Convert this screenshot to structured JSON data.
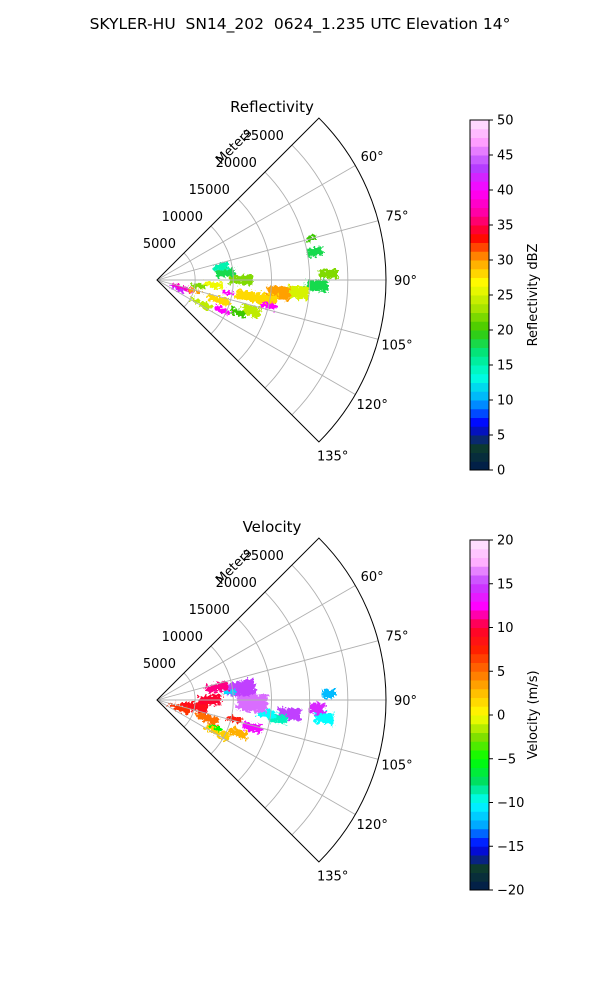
{
  "figure": {
    "title": "SKYLER-HU  SN14_202  0624_1.235 UTC Elevation 14°"
  },
  "chart_data": [
    {
      "type": "heatmap",
      "subtype": "polar-sector (radar PPI)",
      "title": "Reflectivity",
      "radial_label": "Meters",
      "radial_ticks": [
        "5000",
        "10000",
        "15000",
        "20000",
        "25000"
      ],
      "radial_values": [
        5000,
        10000,
        15000,
        20000,
        25000
      ],
      "rlim": [
        0,
        30000
      ],
      "angle_ticks": [
        "60°",
        "75°",
        "90°",
        "105°",
        "120°",
        "135°"
      ],
      "angle_values": [
        60,
        75,
        90,
        105,
        120,
        135
      ],
      "theta_range": [
        45,
        135
      ],
      "grid": true,
      "colorbar": {
        "label": "Reflectivity dBZ",
        "ticks": [
          "0",
          "5",
          "10",
          "15",
          "20",
          "25",
          "30",
          "35",
          "40",
          "45",
          "50"
        ],
        "range": [
          0,
          50
        ],
        "stops": [
          "#001a4d",
          "#0d3b2e",
          "#0000ff",
          "#00aaff",
          "#00ffe0",
          "#00e680",
          "#3ac800",
          "#aee600",
          "#ffff00",
          "#ffa000",
          "#ff0000",
          "#ff00a0",
          "#ff00ff",
          "#b040ff",
          "#ff99ff",
          "#ffe6ff"
        ]
      },
      "cells": [
        {
          "r": 21000,
          "theta": 80,
          "dr": 2000,
          "dth": 3,
          "value": 18
        },
        {
          "r": 21000,
          "theta": 75,
          "dr": 1200,
          "dth": 2,
          "value": 20
        },
        {
          "r": 22500,
          "theta": 88,
          "dr": 2500,
          "dth": 3,
          "value": 22
        },
        {
          "r": 21000,
          "theta": 92,
          "dr": 3000,
          "dth": 4,
          "value": 18
        },
        {
          "r": 18500,
          "theta": 95,
          "dr": 3000,
          "dth": 5,
          "value": 25
        },
        {
          "r": 16000,
          "theta": 96,
          "dr": 3000,
          "dth": 6,
          "value": 30
        },
        {
          "r": 14500,
          "theta": 100,
          "dr": 3000,
          "dth": 6,
          "value": 28
        },
        {
          "r": 15000,
          "theta": 103,
          "dr": 2000,
          "dth": 3,
          "value": 40
        },
        {
          "r": 12000,
          "theta": 100,
          "dr": 3000,
          "dth": 6,
          "value": 28
        },
        {
          "r": 11000,
          "theta": 90,
          "dr": 3000,
          "dth": 6,
          "value": 22
        },
        {
          "r": 9000,
          "theta": 84,
          "dr": 2500,
          "dth": 6,
          "value": 18
        },
        {
          "r": 8500,
          "theta": 78,
          "dr": 2000,
          "dth": 6,
          "value": 15
        },
        {
          "r": 7500,
          "theta": 95,
          "dr": 2500,
          "dth": 6,
          "value": 26
        },
        {
          "r": 9500,
          "theta": 100,
          "dr": 1500,
          "dth": 3,
          "value": 40
        },
        {
          "r": 8500,
          "theta": 108,
          "dr": 3000,
          "dth": 6,
          "value": 28
        },
        {
          "r": 9500,
          "theta": 115,
          "dr": 2000,
          "dth": 4,
          "value": 40
        },
        {
          "r": 6500,
          "theta": 118,
          "dr": 3000,
          "dth": 6,
          "value": 24
        },
        {
          "r": 3500,
          "theta": 107,
          "dr": 3000,
          "dth": 8,
          "value": 38
        },
        {
          "r": 2800,
          "theta": 114,
          "dr": 2200,
          "dth": 8,
          "value": 42
        },
        {
          "r": 5200,
          "theta": 106,
          "dr": 1800,
          "dth": 5,
          "value": 30
        },
        {
          "r": 5500,
          "theta": 98,
          "dr": 2000,
          "dth": 6,
          "value": 22
        },
        {
          "r": 13000,
          "theta": 108,
          "dr": 2500,
          "dth": 6,
          "value": 24
        },
        {
          "r": 11500,
          "theta": 112,
          "dr": 2000,
          "dth": 4,
          "value": 20
        }
      ]
    },
    {
      "type": "heatmap",
      "subtype": "polar-sector (radar PPI)",
      "title": "Velocity",
      "radial_label": "Meters",
      "radial_ticks": [
        "5000",
        "10000",
        "15000",
        "20000",
        "25000"
      ],
      "radial_values": [
        5000,
        10000,
        15000,
        20000,
        25000
      ],
      "rlim": [
        0,
        30000
      ],
      "angle_ticks": [
        "60°",
        "75°",
        "90°",
        "105°",
        "120°",
        "135°"
      ],
      "angle_values": [
        60,
        75,
        90,
        105,
        120,
        135
      ],
      "theta_range": [
        45,
        135
      ],
      "grid": true,
      "colorbar": {
        "label": "Velocity (m/s)",
        "ticks": [
          "−20",
          "−15",
          "−10",
          "−5",
          "0",
          "5",
          "10",
          "15",
          "20"
        ],
        "range": [
          -20,
          20
        ],
        "stops": [
          "#001a4d",
          "#0d3b2e",
          "#0000ff",
          "#00aaff",
          "#00ffff",
          "#00e060",
          "#00ff00",
          "#80e000",
          "#ffff00",
          "#ffc000",
          "#ff7000",
          "#ff2000",
          "#ff0030",
          "#ff00ff",
          "#c040ff",
          "#ffb0ff",
          "#ffe8ff"
        ]
      },
      "cells": [
        {
          "r": 22500,
          "theta": 88,
          "dr": 1800,
          "dth": 3,
          "value": -12
        },
        {
          "r": 22000,
          "theta": 96,
          "dr": 2500,
          "dth": 4,
          "value": -10
        },
        {
          "r": 21000,
          "theta": 93,
          "dr": 2000,
          "dth": 4,
          "value": 14
        },
        {
          "r": 17500,
          "theta": 96,
          "dr": 3000,
          "dth": 5,
          "value": 15
        },
        {
          "r": 16000,
          "theta": 99,
          "dr": 2500,
          "dth": 4,
          "value": -9
        },
        {
          "r": 14500,
          "theta": 97,
          "dr": 2500,
          "dth": 4,
          "value": -10
        },
        {
          "r": 12500,
          "theta": 92,
          "dr": 4000,
          "dth": 10,
          "value": 16
        },
        {
          "r": 11000,
          "theta": 82,
          "dr": 4000,
          "dth": 10,
          "value": 15
        },
        {
          "r": 9500,
          "theta": 84,
          "dr": 1500,
          "dth": 3,
          "value": -11
        },
        {
          "r": 8000,
          "theta": 78,
          "dr": 3000,
          "dth": 8,
          "value": 11
        },
        {
          "r": 7000,
          "theta": 90,
          "dr": 3000,
          "dth": 10,
          "value": 10
        },
        {
          "r": 5000,
          "theta": 100,
          "dr": 3500,
          "dth": 12,
          "value": 9
        },
        {
          "r": 3000,
          "theta": 110,
          "dr": 3000,
          "dth": 12,
          "value": 7
        },
        {
          "r": 7000,
          "theta": 110,
          "dr": 3000,
          "dth": 8,
          "value": 5
        },
        {
          "r": 9000,
          "theta": 118,
          "dr": 3500,
          "dth": 6,
          "value": 2
        },
        {
          "r": 11500,
          "theta": 112,
          "dr": 2500,
          "dth": 5,
          "value": 3
        },
        {
          "r": 13000,
          "theta": 106,
          "dr": 2500,
          "dth": 5,
          "value": 13
        },
        {
          "r": 10500,
          "theta": 104,
          "dr": 2000,
          "dth": 4,
          "value": 8
        },
        {
          "r": 8500,
          "theta": 115,
          "dr": 1500,
          "dth": 3,
          "value": -5
        }
      ]
    }
  ]
}
